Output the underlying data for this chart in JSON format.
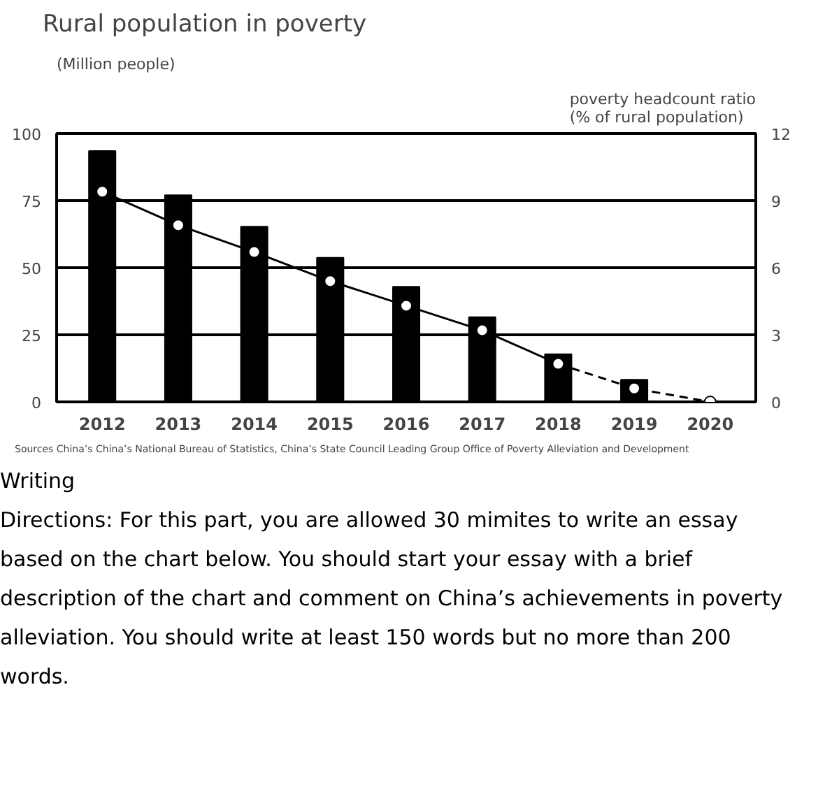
{
  "chart_data": {
    "type": "bar",
    "title": "Rural population in poverty",
    "ylabel": "(Million people)",
    "y2label": "poverty headcount ratio\n(% of rural population)",
    "categories": [
      "2012",
      "2013",
      "2014",
      "2015",
      "2016",
      "2017",
      "2018",
      "2019",
      "2020"
    ],
    "series": [
      {
        "color": "#000000",
        "values": [
          93.5,
          77.0,
          65.3,
          53.7,
          42.9,
          31.6,
          17.8,
          8.3,
          0
        ]
      },
      {
        "type": "line",
        "axis": "y2",
        "color": "#000000",
        "marker": "circle",
        "line_style": "solid",
        "values": [
          9.4,
          7.9,
          6.7,
          5.4,
          4.3,
          3.2,
          1.7,
          null,
          null
        ]
      },
      {
        "type": "line",
        "axis": "y2",
        "color": "#000000",
        "marker": "circle",
        "line_style": "dashed",
        "values": [
          null,
          null,
          null,
          null,
          null,
          null,
          1.7,
          0.6,
          0
        ]
      }
    ],
    "ylim": [
      0,
      100
    ],
    "yticks": [
      0,
      25,
      50,
      75,
      100
    ],
    "y2lim": [
      0,
      12
    ],
    "y2ticks": [
      0,
      3,
      6,
      9,
      12
    ],
    "grid": "y",
    "annotations": [
      "Sources China’s China’s National Bureau of Statistics, China’s State Council Leading Group Office of Poverty Alleviation and Development",
      "Writing",
      "Directions: For this part, you are allowed 30 mimites to write an essay based on the chart below. You should start your essay with a brief description of the chart and comment on China’s achievements in poverty alleviation. You should write at least 150 words but no more than 200 words."
    ]
  }
}
